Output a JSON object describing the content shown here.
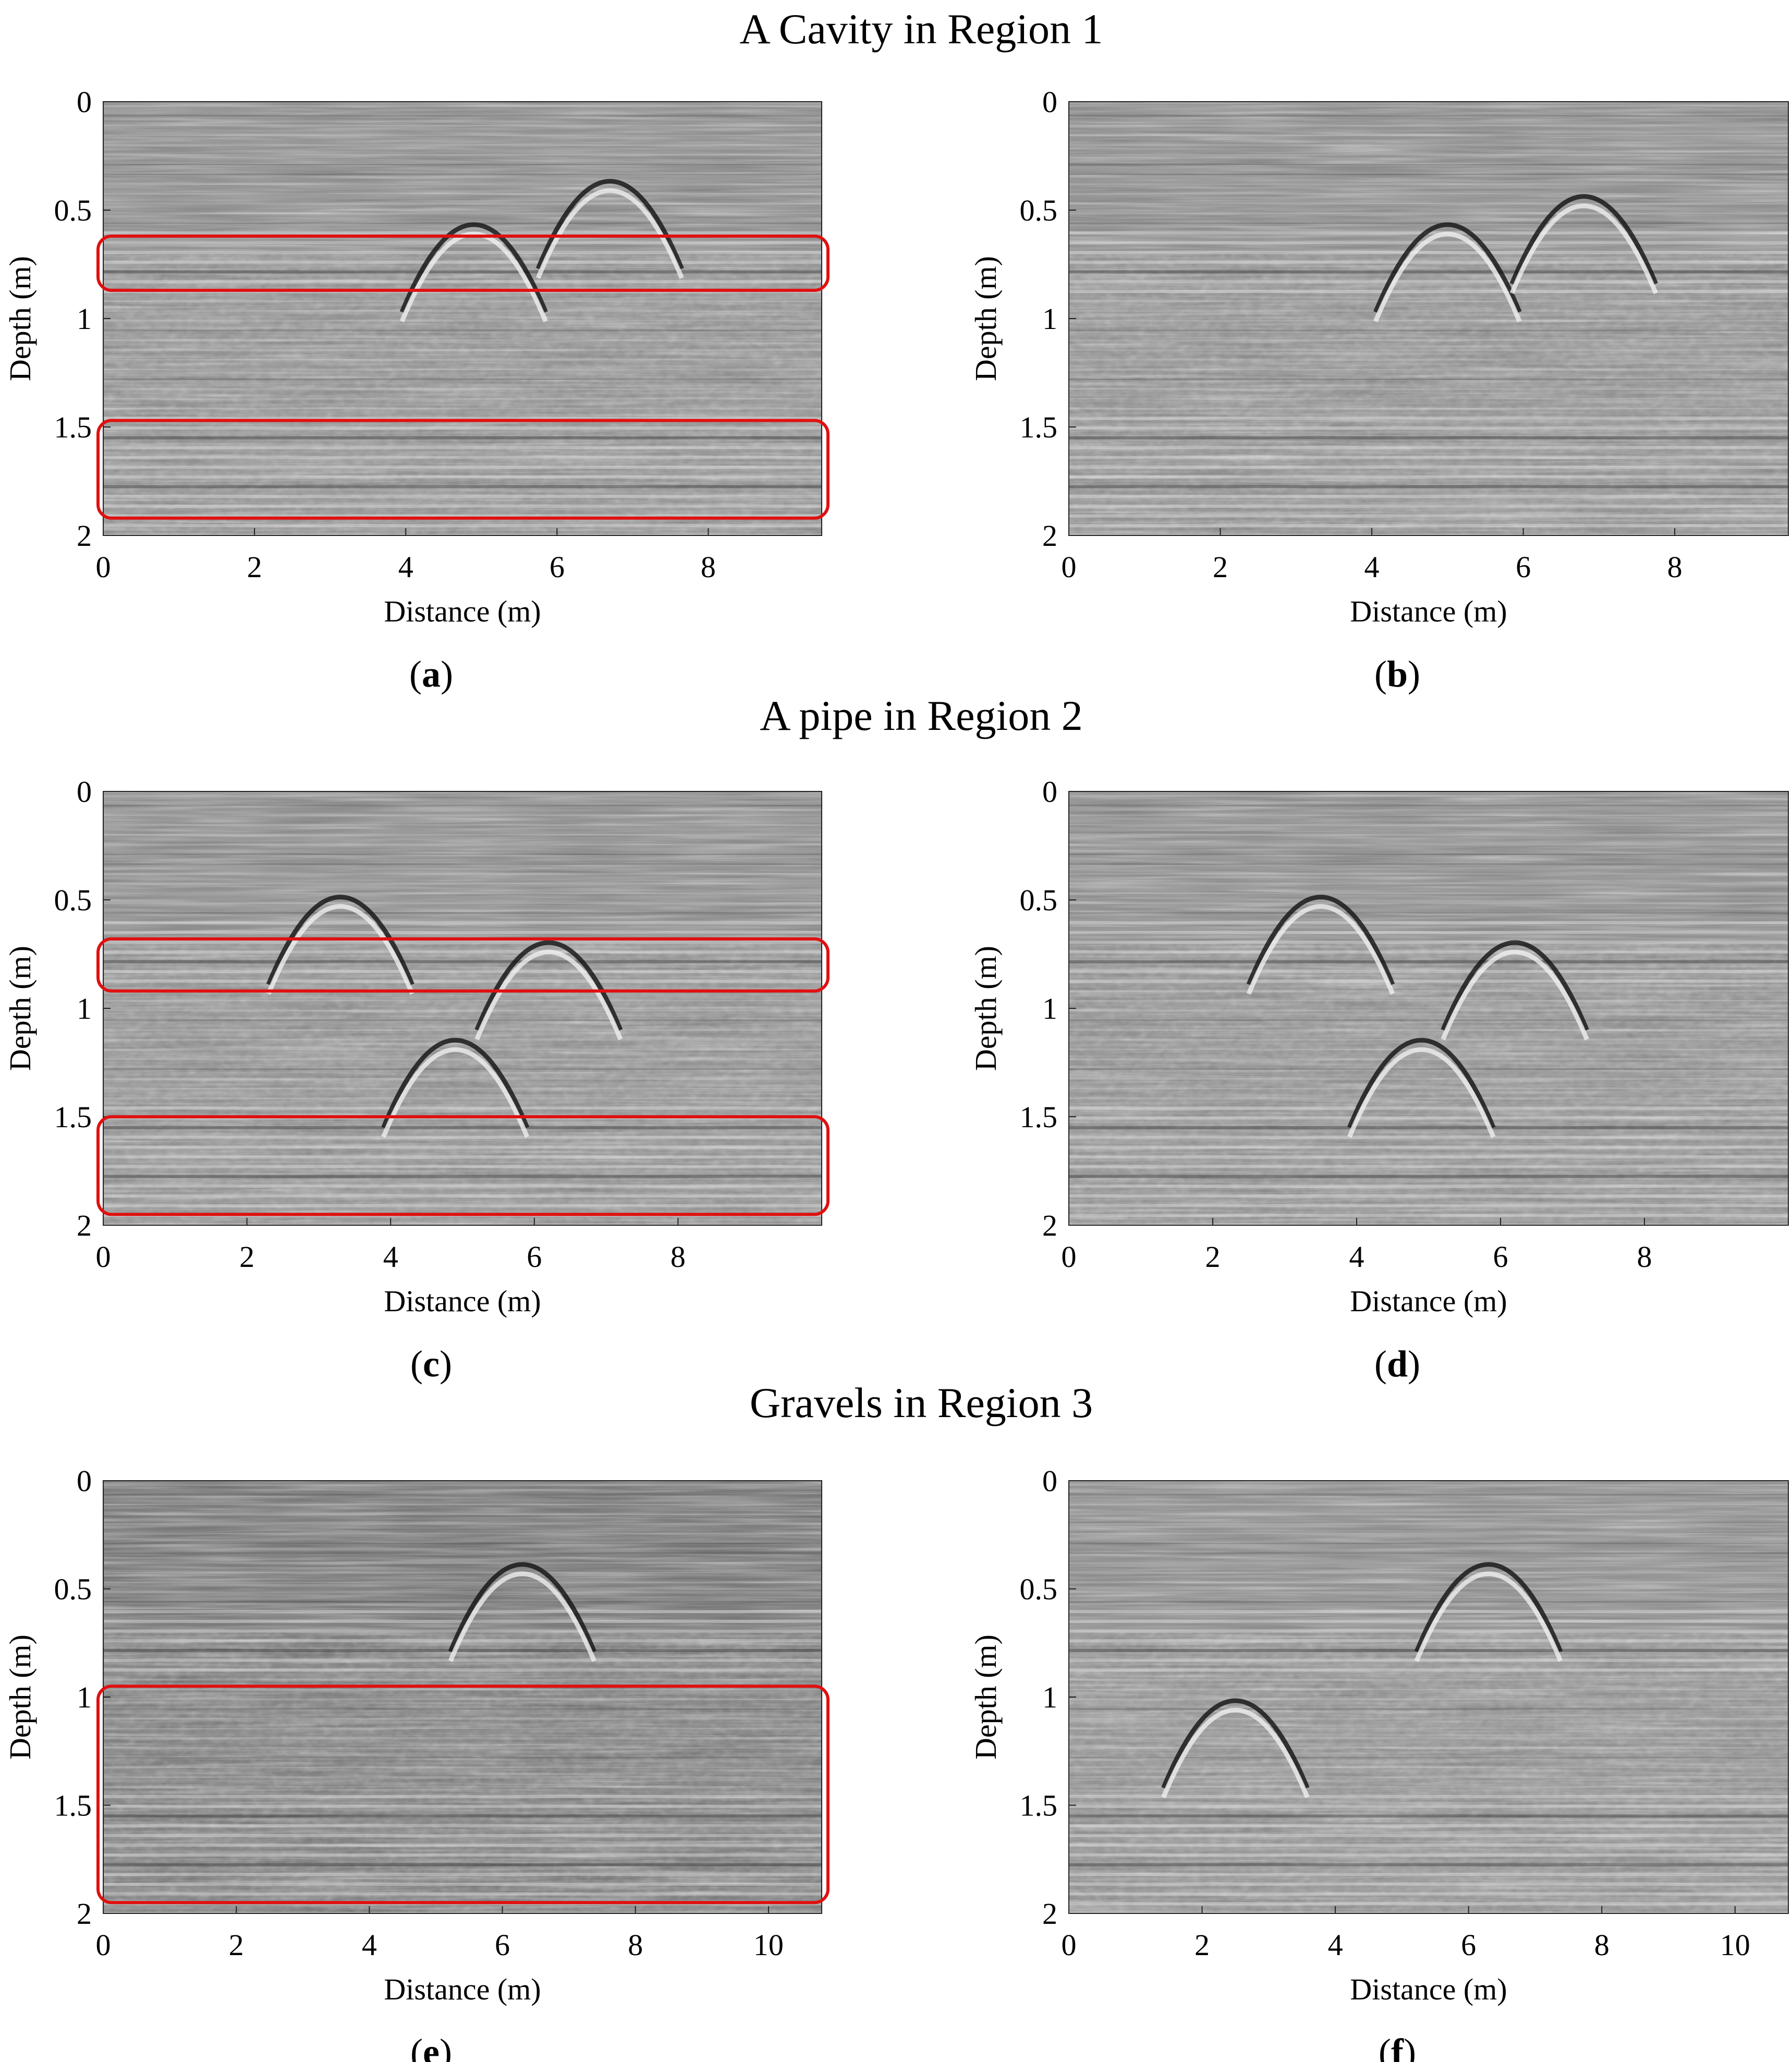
{
  "figure": {
    "row_titles": [
      "A Cavity in Region 1",
      "A pipe in Region 2",
      "Gravels in Region 3"
    ],
    "panel_labels": [
      "a",
      "b",
      "c",
      "d",
      "e",
      "f"
    ]
  },
  "chart_data": [
    {
      "id": "a",
      "type": "heatmap",
      "title": "",
      "xlabel": "Distance (m)",
      "ylabel": "Depth (m)",
      "xlim": [
        0,
        9.5
      ],
      "ylim": [
        2,
        0
      ],
      "xticks": [
        0,
        2,
        4,
        6,
        8
      ],
      "yticks": [
        0,
        0.5,
        1,
        1.5,
        2
      ],
      "highlight_boxes": [
        {
          "x": [
            0,
            9.5
          ],
          "y": [
            0.62,
            0.87
          ]
        },
        {
          "x": [
            0,
            9.5
          ],
          "y": [
            1.47,
            1.92
          ]
        }
      ],
      "hyperbolas": [
        {
          "x": 4.9,
          "apex_depth": 0.45
        },
        {
          "x": 6.7,
          "apex_depth": 0.25
        }
      ]
    },
    {
      "id": "b",
      "type": "heatmap",
      "title": "",
      "xlabel": "Distance (m)",
      "ylabel": "Depth (m)",
      "xlim": [
        0,
        9.5
      ],
      "ylim": [
        2,
        0
      ],
      "xticks": [
        0,
        2,
        4,
        6,
        8
      ],
      "yticks": [
        0,
        0.5,
        1,
        1.5,
        2
      ],
      "highlight_boxes": [],
      "hyperbolas": [
        {
          "x": 5.0,
          "apex_depth": 0.45
        },
        {
          "x": 6.8,
          "apex_depth": 0.32
        }
      ]
    },
    {
      "id": "c",
      "type": "heatmap",
      "title": "",
      "xlabel": "Distance (m)",
      "ylabel": "Depth (m)",
      "xlim": [
        0,
        10
      ],
      "ylim": [
        2,
        0
      ],
      "xticks": [
        0,
        2,
        4,
        6,
        8
      ],
      "yticks": [
        0,
        0.5,
        1,
        1.5,
        2
      ],
      "highlight_boxes": [
        {
          "x": [
            0,
            10
          ],
          "y": [
            0.68,
            0.92
          ]
        },
        {
          "x": [
            0,
            10
          ],
          "y": [
            1.5,
            1.95
          ]
        }
      ],
      "hyperbolas": [
        {
          "x": 4.9,
          "apex_depth": 1.03
        },
        {
          "x": 3.3,
          "apex_depth": 0.37
        },
        {
          "x": 6.2,
          "apex_depth": 0.58
        }
      ]
    },
    {
      "id": "d",
      "type": "heatmap",
      "title": "",
      "xlabel": "Distance (m)",
      "ylabel": "Depth (m)",
      "xlim": [
        0,
        10
      ],
      "ylim": [
        2,
        0
      ],
      "xticks": [
        0,
        2,
        4,
        6,
        8
      ],
      "yticks": [
        0,
        0.5,
        1,
        1.5,
        2
      ],
      "highlight_boxes": [],
      "hyperbolas": [
        {
          "x": 4.9,
          "apex_depth": 1.03
        },
        {
          "x": 3.5,
          "apex_depth": 0.37
        },
        {
          "x": 6.2,
          "apex_depth": 0.58
        }
      ]
    },
    {
      "id": "e",
      "type": "heatmap",
      "title": "",
      "xlabel": "Distance (m)",
      "ylabel": "Depth (m)",
      "xlim": [
        0,
        10.8
      ],
      "ylim": [
        2,
        0
      ],
      "xticks": [
        0,
        2,
        4,
        6,
        8,
        10
      ],
      "yticks": [
        0,
        0.5,
        1,
        1.5,
        2
      ],
      "highlight_boxes": [
        {
          "x": [
            0,
            10.8
          ],
          "y": [
            0.95,
            1.95
          ]
        }
      ],
      "hyperbolas": [
        {
          "x": 6.3,
          "apex_depth": 0.27
        }
      ]
    },
    {
      "id": "f",
      "type": "heatmap",
      "title": "",
      "xlabel": "Distance (m)",
      "ylabel": "Depth (m)",
      "xlim": [
        0,
        10.8
      ],
      "ylim": [
        2,
        0
      ],
      "xticks": [
        0,
        2,
        4,
        6,
        8,
        10
      ],
      "yticks": [
        0,
        0.5,
        1,
        1.5,
        2
      ],
      "highlight_boxes": [],
      "hyperbolas": [
        {
          "x": 6.3,
          "apex_depth": 0.27
        },
        {
          "x": 2.5,
          "apex_depth": 0.9
        }
      ]
    }
  ]
}
